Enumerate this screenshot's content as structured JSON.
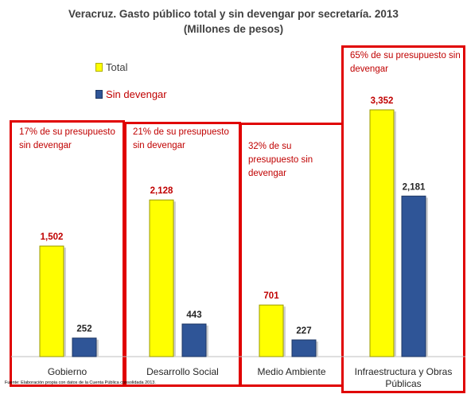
{
  "chart_data": {
    "type": "bar",
    "title": "Veracruz. Gasto público total y sin devengar por secretaría.  2013",
    "subtitle": "(Millones de pesos)",
    "categories": [
      "Gobierno",
      "Desarrollo Social",
      "Medio Ambiente",
      "Infraestructura y Obras Públicas"
    ],
    "series": [
      {
        "name": "Total",
        "values": [
          1502,
          2128,
          701,
          3352
        ],
        "color": "#ffff00",
        "label_color": "#c00000"
      },
      {
        "name": "Sin devengar",
        "values": [
          252,
          443,
          227,
          2181
        ],
        "color": "#2f5597",
        "label_color": "#262626"
      }
    ],
    "value_labels": [
      [
        "1,502",
        "252"
      ],
      [
        "2,128",
        "443"
      ],
      [
        "701",
        "227"
      ],
      [
        "3,352",
        "2,181"
      ]
    ],
    "annotations": [
      "17% de su presupuesto sin devengar",
      "21% de su presupuesto sin devengar",
      "32% de su presupuesto sin devengar",
      "65% de su presupuesto sin devengar"
    ],
    "legend": "top-left",
    "grid": false,
    "ylim": [
      0,
      3700
    ],
    "source": "Fuente: Elaboración propia con datos de la Cuenta Pública consolidada 2013."
  }
}
